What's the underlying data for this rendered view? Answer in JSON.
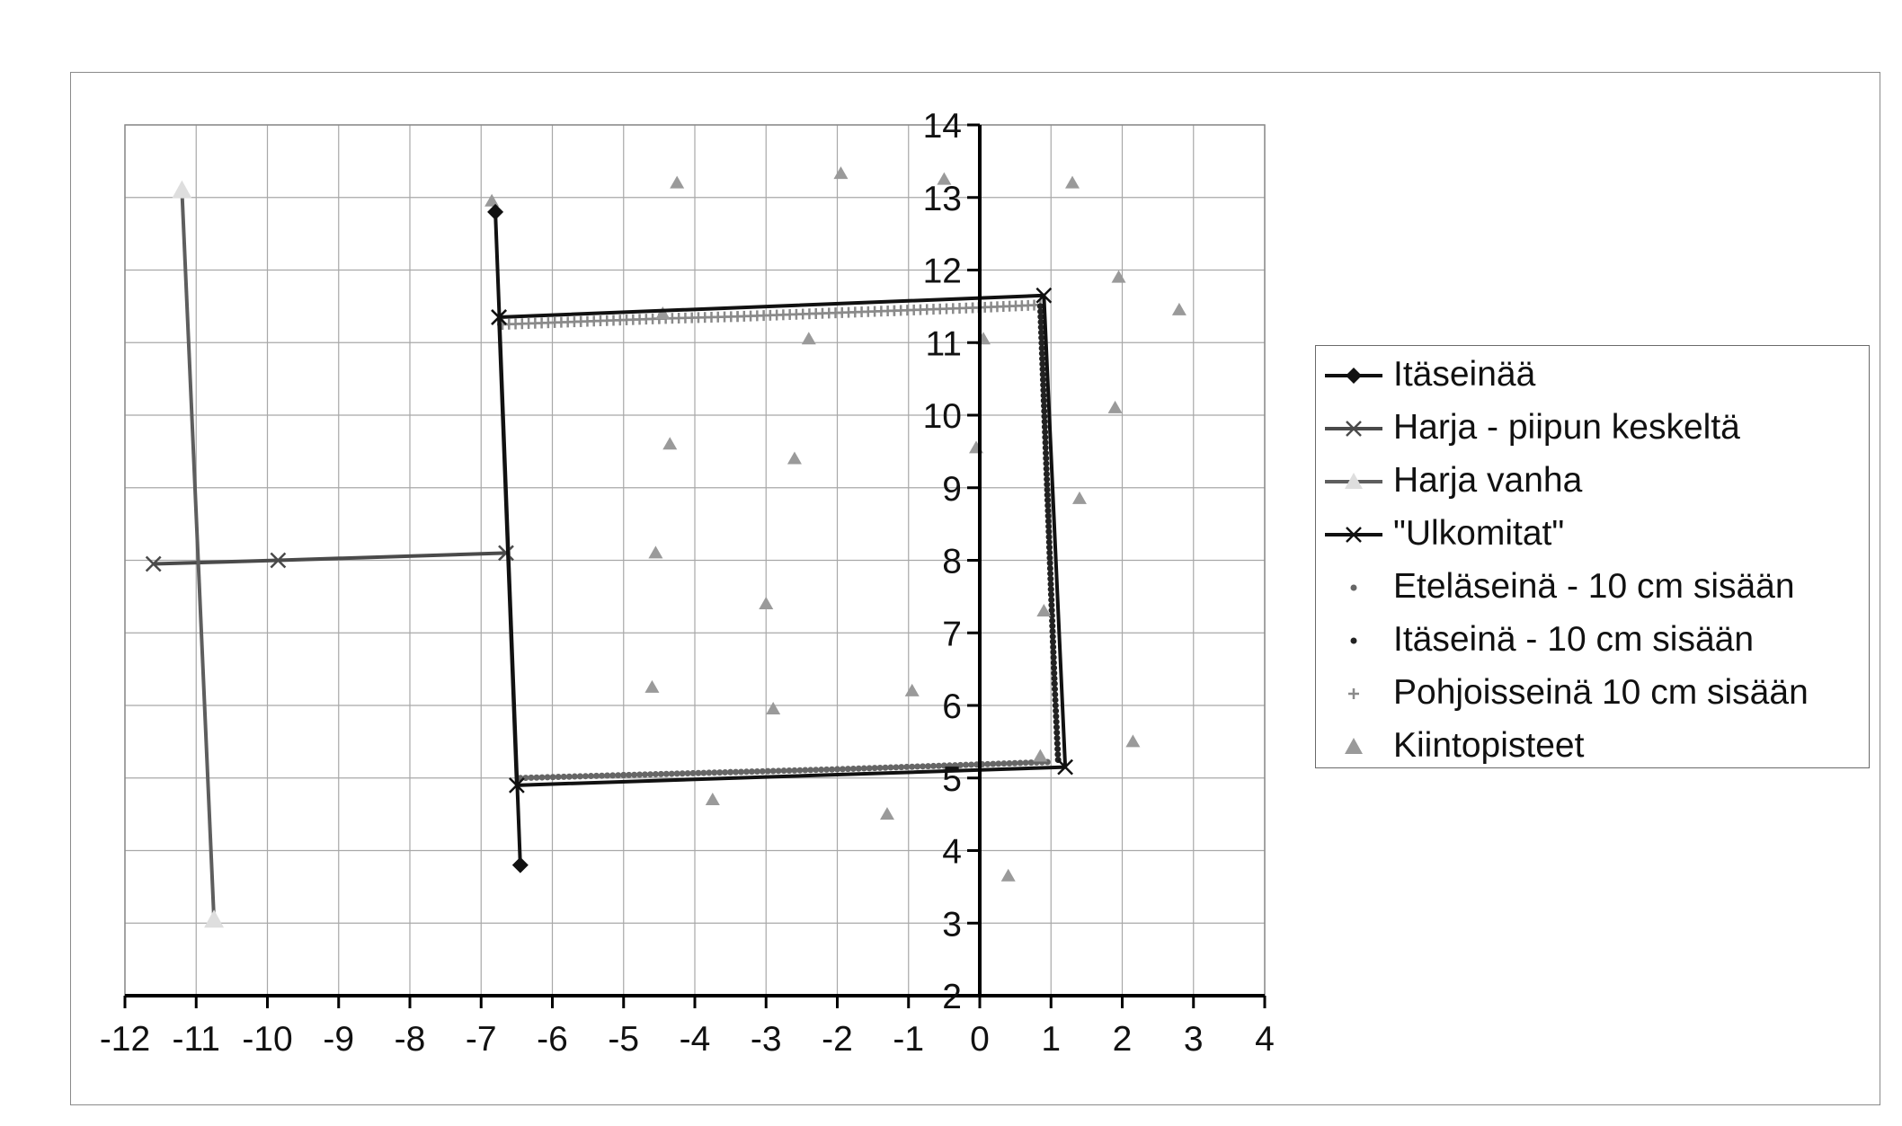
{
  "chart_data": {
    "type": "scatter",
    "title": "",
    "xlabel": "",
    "ylabel": "",
    "xlim": [
      -12,
      4
    ],
    "ylim": [
      2,
      14
    ],
    "x_ticks": [
      "-12",
      "-11",
      "-10",
      "-9",
      "-8",
      "-7",
      "-6",
      "-5",
      "-4",
      "-3",
      "-2",
      "-1",
      "0",
      "1",
      "2",
      "3",
      "4"
    ],
    "y_ticks": [
      "2",
      "3",
      "4",
      "5",
      "6",
      "7",
      "8",
      "9",
      "10",
      "11",
      "12",
      "13",
      "14"
    ],
    "grid": true,
    "legend_position": "right",
    "series": [
      {
        "name": "Itäseinää",
        "style": "line",
        "marker": "diamond",
        "color": "#111111",
        "points": [
          [
            -6.8,
            12.8
          ],
          [
            -6.45,
            3.8
          ]
        ]
      },
      {
        "name": "Harja - piipun keskeltä",
        "style": "line",
        "marker": "x",
        "color": "#4a4a4a",
        "points": [
          [
            -11.6,
            7.95
          ],
          [
            -9.85,
            8.0
          ],
          [
            -6.65,
            8.1
          ]
        ]
      },
      {
        "name": "Harja vanha",
        "style": "line",
        "marker": "triangle",
        "color": "#5e5e5e",
        "marker_color": "#dedede",
        "points": [
          [
            -11.2,
            13.1
          ],
          [
            -10.75,
            3.05
          ]
        ]
      },
      {
        "name": "\"Ulkomitat\"",
        "style": "line",
        "marker": "x",
        "color": "#111111",
        "points": [
          [
            -6.75,
            11.35
          ],
          [
            0.9,
            11.65
          ],
          [
            1.2,
            5.15
          ],
          [
            -6.5,
            4.9
          ],
          [
            -6.75,
            11.35
          ]
        ]
      },
      {
        "name": "Eteläseinä - 10 cm sisään",
        "style": "dots",
        "marker": "dot",
        "color": "#666666",
        "points": [
          [
            -6.45,
            5.0
          ],
          [
            -5.0,
            5.04
          ],
          [
            -3.5,
            5.08
          ],
          [
            -2.0,
            5.12
          ],
          [
            -0.5,
            5.17
          ],
          [
            0.95,
            5.22
          ]
        ]
      },
      {
        "name": "Itäseinä - 10 cm sisään",
        "style": "dots",
        "marker": "dot",
        "color": "#222222",
        "points": [
          [
            0.85,
            11.5
          ],
          [
            0.9,
            10.2
          ],
          [
            0.95,
            8.9
          ],
          [
            1.0,
            7.6
          ],
          [
            1.05,
            6.3
          ],
          [
            1.1,
            5.25
          ]
        ]
      },
      {
        "name": "Pohjoisseinä 10 cm sisään",
        "style": "dots",
        "marker": "plus",
        "color": "#8a8a8a",
        "points": [
          [
            -6.7,
            11.25
          ],
          [
            -5.6,
            11.29
          ],
          [
            -4.5,
            11.33
          ],
          [
            -3.4,
            11.36
          ],
          [
            -2.3,
            11.4
          ],
          [
            -1.2,
            11.44
          ],
          [
            -0.1,
            11.48
          ],
          [
            0.85,
            11.52
          ]
        ]
      },
      {
        "name": "Kiintopisteet",
        "style": "points",
        "marker": "triangle",
        "color": "#9a9a9a",
        "points": [
          [
            -4.25,
            13.2
          ],
          [
            -1.95,
            13.33
          ],
          [
            -0.5,
            13.25
          ],
          [
            1.3,
            13.2
          ],
          [
            -6.85,
            12.95
          ],
          [
            1.95,
            11.9
          ],
          [
            2.8,
            11.45
          ],
          [
            -4.45,
            11.4
          ],
          [
            -2.4,
            11.05
          ],
          [
            0.05,
            11.05
          ],
          [
            1.9,
            10.1
          ],
          [
            -4.35,
            9.6
          ],
          [
            -2.6,
            9.4
          ],
          [
            -0.05,
            9.55
          ],
          [
            1.4,
            8.85
          ],
          [
            -4.55,
            8.1
          ],
          [
            -3.0,
            7.4
          ],
          [
            0.9,
            7.3
          ],
          [
            -4.6,
            6.25
          ],
          [
            -2.9,
            5.95
          ],
          [
            -0.95,
            6.2
          ],
          [
            2.15,
            5.5
          ],
          [
            0.85,
            5.3
          ],
          [
            -3.75,
            4.7
          ],
          [
            -1.3,
            4.5
          ],
          [
            0.4,
            3.65
          ]
        ]
      }
    ]
  }
}
